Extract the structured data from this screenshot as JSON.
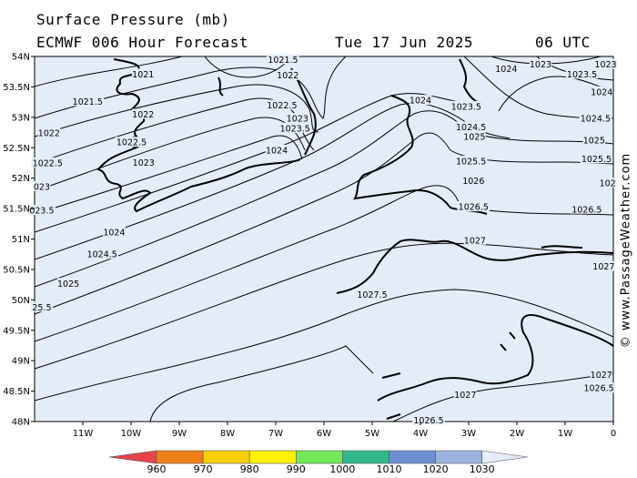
{
  "title": "Surface Pressure (mb)",
  "model": "ECMWF 006 Hour Forecast",
  "date": "Tue 17 Jun 2025",
  "time": "06 UTC",
  "copyright": "© www.PassageWeather.com",
  "colors": {
    "sea": "#e4ecf8",
    "land": "#e4ecf8",
    "coast": "#000000",
    "isobar": "#000000"
  },
  "map": {
    "lon_range": [
      -12,
      0
    ],
    "lat_range": [
      48,
      54
    ],
    "lat_labels": [
      "54N",
      "53.5N",
      "53N",
      "52.5N",
      "52N",
      "51.5N",
      "51N",
      "50.5N",
      "50N",
      "49.5N",
      "49N",
      "48.5N",
      "48N"
    ],
    "lon_labels": [
      "11W",
      "10W",
      "9W",
      "8W",
      "7W",
      "6W",
      "5W",
      "4W",
      "3W",
      "2W",
      "1W",
      "0"
    ]
  },
  "isobar_labels": [
    {
      "text": "1021.5",
      "lon": -6.85,
      "lat": 53.95
    },
    {
      "text": "1021",
      "lon": -9.75,
      "lat": 53.71
    },
    {
      "text": "1022",
      "lon": -6.75,
      "lat": 53.69
    },
    {
      "text": "1021.5",
      "lon": -10.9,
      "lat": 53.26
    },
    {
      "text": "1022",
      "lon": -9.75,
      "lat": 53.05
    },
    {
      "text": "1022.5",
      "lon": -6.87,
      "lat": 53.2
    },
    {
      "text": "1023",
      "lon": -6.55,
      "lat": 52.98
    },
    {
      "text": "1023.5",
      "lon": -6.6,
      "lat": 52.82
    },
    {
      "text": "1022",
      "lon": -11.7,
      "lat": 52.74
    },
    {
      "text": "1022.5",
      "lon": -9.99,
      "lat": 52.59
    },
    {
      "text": "1023",
      "lon": -9.74,
      "lat": 52.26
    },
    {
      "text": "1024",
      "lon": -6.98,
      "lat": 52.46
    },
    {
      "text": "1022.5",
      "lon": -11.73,
      "lat": 52.25
    },
    {
      "text": "023",
      "lon": -11.85,
      "lat": 51.86
    },
    {
      "text": "023.5",
      "lon": -11.85,
      "lat": 51.47
    },
    {
      "text": "1024",
      "lon": -10.35,
      "lat": 51.11
    },
    {
      "text": "1024.5",
      "lon": -10.6,
      "lat": 50.75
    },
    {
      "text": "1025",
      "lon": -11.3,
      "lat": 50.27
    },
    {
      "text": "25.5",
      "lon": -11.85,
      "lat": 49.88
    },
    {
      "text": "1024",
      "lon": -2.22,
      "lat": 53.8
    },
    {
      "text": "1023",
      "lon": -1.51,
      "lat": 53.87
    },
    {
      "text": "1023",
      "lon": -0.16,
      "lat": 53.87
    },
    {
      "text": "1023.5",
      "lon": -0.65,
      "lat": 53.71
    },
    {
      "text": "1024",
      "lon": -0.24,
      "lat": 53.42
    },
    {
      "text": "1024",
      "lon": -4.0,
      "lat": 53.28
    },
    {
      "text": "1023.5",
      "lon": -3.05,
      "lat": 53.18
    },
    {
      "text": "1024.5",
      "lon": -0.37,
      "lat": 52.98
    },
    {
      "text": "1024.5",
      "lon": -2.95,
      "lat": 52.84
    },
    {
      "text": "1025",
      "lon": -2.88,
      "lat": 52.68
    },
    {
      "text": "1025",
      "lon": -0.4,
      "lat": 52.62
    },
    {
      "text": "1025.5",
      "lon": -0.35,
      "lat": 52.32
    },
    {
      "text": "1025.5",
      "lon": -2.95,
      "lat": 52.28
    },
    {
      "text": "1026",
      "lon": -2.9,
      "lat": 51.96
    },
    {
      "text": "102",
      "lon": -0.12,
      "lat": 51.92
    },
    {
      "text": "1026.5",
      "lon": -2.9,
      "lat": 51.53
    },
    {
      "text": "1026.5",
      "lon": -0.55,
      "lat": 51.49
    },
    {
      "text": "1027",
      "lon": -2.87,
      "lat": 50.98
    },
    {
      "text": "1027",
      "lon": -0.2,
      "lat": 50.55
    },
    {
      "text": "1027.5",
      "lon": -5.0,
      "lat": 50.09
    },
    {
      "text": "1027",
      "lon": -0.25,
      "lat": 48.77
    },
    {
      "text": "1026.5",
      "lon": -0.3,
      "lat": 48.55
    },
    {
      "text": "1027",
      "lon": -3.07,
      "lat": 48.44
    },
    {
      "text": "1026.5",
      "lon": -3.83,
      "lat": 48.02
    }
  ],
  "colorbar": {
    "labels": [
      "960",
      "970",
      "980",
      "990",
      "1000",
      "1010",
      "1020",
      "1030"
    ],
    "colors": [
      "#e8424a",
      "#f07e18",
      "#f6ce05",
      "#fff200",
      "#74e858",
      "#2fb88c",
      "#6c8fd2",
      "#9db3df",
      "#c9d6ee",
      "#e6ecf8"
    ]
  }
}
